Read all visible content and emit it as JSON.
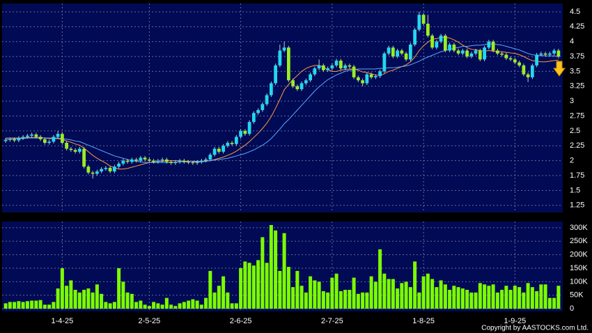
{
  "chart_data": {
    "type": "candlestick",
    "categories": [
      null,
      null,
      null,
      null,
      null,
      null,
      null,
      null,
      null,
      null,
      null,
      null,
      null,
      "1-4-25",
      null,
      null,
      null,
      null,
      null,
      null,
      null,
      null,
      null,
      null,
      null,
      null,
      null,
      null,
      null,
      null,
      null,
      null,
      null,
      "2-5-25",
      null,
      null,
      null,
      null,
      null,
      null,
      null,
      null,
      null,
      null,
      null,
      null,
      null,
      null,
      null,
      null,
      null,
      null,
      null,
      null,
      "2-6-25",
      null,
      null,
      null,
      null,
      null,
      null,
      null,
      null,
      null,
      null,
      null,
      null,
      null,
      null,
      null,
      null,
      null,
      null,
      null,
      null,
      "2-7-25",
      null,
      null,
      null,
      null,
      null,
      null,
      null,
      null,
      null,
      null,
      null,
      null,
      null,
      null,
      null,
      null,
      null,
      null,
      null,
      null,
      "1-8-25",
      null,
      null,
      null,
      null,
      null,
      null,
      null,
      null,
      null,
      null,
      null,
      null,
      null,
      null,
      null,
      null,
      null,
      null,
      null,
      null,
      "1-9-25",
      null,
      null,
      null,
      null,
      null,
      null,
      null,
      null,
      null,
      null
    ],
    "open": [
      2.33,
      2.35,
      2.36,
      2.34,
      2.38,
      2.4,
      2.42,
      2.44,
      2.4,
      2.36,
      2.3,
      2.32,
      2.4,
      2.45,
      2.3,
      2.2,
      2.18,
      2.15,
      2.2,
      1.9,
      1.8,
      1.78,
      1.82,
      1.86,
      1.88,
      1.82,
      1.9,
      1.95,
      2.0,
      1.98,
      2.02,
      2.0,
      2.05,
      2.02,
      2.0,
      1.98,
      2.0,
      2.02,
      1.98,
      1.96,
      1.98,
      2.0,
      1.98,
      1.97,
      1.96,
      1.98,
      2.0,
      2.02,
      2.1,
      2.2,
      2.15,
      2.25,
      2.3,
      2.28,
      2.4,
      2.5,
      2.45,
      2.65,
      2.8,
      2.85,
      2.95,
      3.1,
      3.3,
      3.6,
      3.85,
      3.9,
      3.35,
      3.25,
      3.2,
      3.3,
      3.35,
      3.45,
      3.55,
      3.6,
      3.52,
      3.55,
      3.6,
      3.68,
      3.55,
      3.6,
      3.58,
      3.4,
      3.35,
      3.3,
      3.45,
      3.4,
      3.42,
      3.5,
      3.8,
      3.9,
      3.75,
      3.85,
      3.8,
      3.7,
      3.95,
      4.2,
      4.45,
      4.3,
      4.1,
      3.9,
      4.0,
      4.1,
      3.85,
      3.95,
      3.85,
      3.8,
      3.85,
      3.75,
      3.8,
      3.85,
      3.7,
      3.9,
      4.0,
      3.85,
      3.8,
      3.78,
      3.72,
      3.7,
      3.65,
      3.6,
      3.45,
      3.4,
      3.6,
      3.78,
      3.8,
      3.78,
      3.8,
      3.85
    ],
    "high": [
      2.38,
      2.39,
      2.39,
      2.41,
      2.43,
      2.45,
      2.47,
      2.47,
      2.43,
      2.39,
      2.35,
      2.43,
      2.5,
      2.48,
      2.33,
      2.23,
      2.21,
      2.23,
      2.23,
      1.93,
      1.83,
      1.85,
      1.89,
      1.91,
      1.91,
      1.93,
      1.98,
      2.03,
      2.03,
      2.05,
      2.05,
      2.08,
      2.08,
      2.05,
      2.03,
      2.03,
      2.05,
      2.05,
      2.01,
      2.01,
      2.03,
      2.03,
      2.01,
      2.0,
      2.01,
      2.03,
      2.05,
      2.13,
      2.23,
      2.23,
      2.28,
      2.33,
      2.33,
      2.43,
      2.53,
      2.53,
      2.68,
      2.83,
      2.88,
      2.98,
      3.13,
      3.33,
      3.63,
      3.95,
      4.0,
      3.93,
      3.38,
      3.28,
      3.33,
      3.38,
      3.48,
      3.58,
      3.7,
      3.63,
      3.58,
      3.63,
      3.71,
      3.71,
      3.63,
      3.63,
      3.61,
      3.43,
      3.38,
      3.48,
      3.48,
      3.45,
      3.53,
      3.83,
      3.93,
      3.93,
      3.88,
      3.88,
      3.83,
      3.98,
      4.23,
      4.5,
      4.48,
      4.45,
      4.13,
      4.03,
      4.13,
      4.13,
      3.98,
      3.98,
      3.88,
      3.88,
      3.88,
      3.83,
      3.88,
      3.88,
      3.93,
      4.03,
      4.03,
      3.88,
      3.83,
      3.81,
      3.75,
      3.73,
      3.68,
      3.63,
      3.48,
      3.63,
      3.81,
      3.83,
      3.83,
      3.83,
      3.88,
      3.88
    ],
    "low": [
      2.3,
      2.32,
      2.31,
      2.31,
      2.35,
      2.37,
      2.39,
      2.37,
      2.33,
      2.27,
      2.27,
      2.29,
      2.37,
      2.27,
      2.17,
      2.15,
      2.12,
      2.12,
      1.87,
      1.77,
      1.7,
      1.75,
      1.79,
      1.83,
      1.79,
      1.79,
      1.87,
      1.92,
      1.95,
      1.95,
      1.97,
      1.97,
      1.99,
      1.97,
      1.95,
      1.95,
      1.97,
      1.95,
      1.93,
      1.93,
      1.95,
      1.95,
      1.94,
      1.93,
      1.93,
      1.95,
      1.97,
      1.99,
      2.07,
      2.12,
      2.12,
      2.22,
      2.25,
      2.25,
      2.37,
      2.42,
      2.42,
      2.62,
      2.77,
      2.82,
      2.92,
      3.07,
      3.27,
      3.57,
      3.82,
      3.32,
      3.22,
      3.17,
      3.17,
      3.27,
      3.32,
      3.42,
      3.52,
      3.49,
      3.49,
      3.52,
      3.57,
      3.52,
      3.52,
      3.55,
      3.37,
      3.32,
      3.25,
      3.27,
      3.37,
      3.37,
      3.39,
      3.47,
      3.77,
      3.72,
      3.72,
      3.77,
      3.67,
      3.67,
      3.92,
      4.17,
      4.27,
      4.07,
      3.87,
      3.87,
      3.97,
      3.82,
      3.82,
      3.82,
      3.77,
      3.77,
      3.72,
      3.72,
      3.77,
      3.67,
      3.67,
      3.87,
      3.82,
      3.77,
      3.75,
      3.69,
      3.67,
      3.62,
      3.57,
      3.42,
      3.32,
      3.37,
      3.57,
      3.75,
      3.75,
      3.75,
      3.77,
      3.72
    ],
    "close": [
      2.35,
      2.36,
      2.34,
      2.38,
      2.4,
      2.42,
      2.44,
      2.4,
      2.36,
      2.3,
      2.32,
      2.4,
      2.45,
      2.3,
      2.2,
      2.18,
      2.15,
      2.2,
      1.9,
      1.8,
      1.78,
      1.82,
      1.86,
      1.88,
      1.82,
      1.9,
      1.95,
      2.0,
      1.98,
      2.02,
      2.0,
      2.05,
      2.02,
      2.0,
      1.98,
      2.0,
      2.02,
      1.98,
      1.96,
      1.98,
      2.0,
      1.98,
      1.97,
      1.96,
      1.98,
      2.0,
      2.02,
      2.1,
      2.2,
      2.15,
      2.25,
      2.3,
      2.28,
      2.4,
      2.5,
      2.45,
      2.65,
      2.8,
      2.85,
      2.95,
      3.1,
      3.3,
      3.6,
      3.85,
      3.9,
      3.35,
      3.25,
      3.2,
      3.3,
      3.35,
      3.45,
      3.55,
      3.6,
      3.52,
      3.55,
      3.6,
      3.68,
      3.55,
      3.6,
      3.58,
      3.4,
      3.35,
      3.3,
      3.45,
      3.4,
      3.42,
      3.5,
      3.8,
      3.9,
      3.75,
      3.85,
      3.8,
      3.7,
      3.95,
      4.2,
      4.45,
      4.3,
      4.1,
      3.9,
      4.0,
      4.1,
      3.85,
      3.95,
      3.85,
      3.8,
      3.85,
      3.75,
      3.8,
      3.85,
      3.7,
      3.9,
      4.0,
      3.85,
      3.8,
      3.78,
      3.72,
      3.7,
      3.65,
      3.6,
      3.45,
      3.4,
      3.6,
      3.78,
      3.8,
      3.78,
      3.8,
      3.85,
      3.75
    ],
    "up_color": "#22d8f0",
    "down_color": "#99ee22",
    "ma": [
      {
        "color": "#ff9a3c",
        "values": [
          2.38,
          2.38,
          2.38,
          2.38,
          2.38,
          2.39,
          2.39,
          2.39,
          2.39,
          2.38,
          2.37,
          2.37,
          2.37,
          2.36,
          2.33,
          2.31,
          2.28,
          2.26,
          2.21,
          2.15,
          2.09,
          2.04,
          2.0,
          1.96,
          1.91,
          1.88,
          1.86,
          1.86,
          1.87,
          1.89,
          1.91,
          1.93,
          1.95,
          1.97,
          1.98,
          1.99,
          1.99,
          2.0,
          2.0,
          2.0,
          2.0,
          1.99,
          1.99,
          1.98,
          1.98,
          1.98,
          1.99,
          2.0,
          2.02,
          2.04,
          2.06,
          2.09,
          2.12,
          2.16,
          2.21,
          2.26,
          2.32,
          2.39,
          2.46,
          2.54,
          2.63,
          2.74,
          2.88,
          3.03,
          3.19,
          3.28,
          3.36,
          3.43,
          3.5,
          3.55,
          3.58,
          3.6,
          3.6,
          3.57,
          3.53,
          3.5,
          3.5,
          3.52,
          3.53,
          3.54,
          3.54,
          3.52,
          3.49,
          3.48,
          3.46,
          3.44,
          3.43,
          3.46,
          3.5,
          3.52,
          3.55,
          3.58,
          3.61,
          3.66,
          3.74,
          3.85,
          3.93,
          3.99,
          4.04,
          4.05,
          4.07,
          4.07,
          4.06,
          4.03,
          3.99,
          3.94,
          3.9,
          3.87,
          3.86,
          3.85,
          3.84,
          3.85,
          3.84,
          3.83,
          3.83,
          3.82,
          3.81,
          3.8,
          3.78,
          3.75,
          3.71,
          3.68,
          3.67,
          3.66,
          3.66,
          3.67,
          3.68,
          3.69
        ]
      },
      {
        "color": "#5fa8ff",
        "values": [
          2.36,
          2.36,
          2.37,
          2.37,
          2.37,
          2.38,
          2.38,
          2.38,
          2.38,
          2.38,
          2.38,
          2.38,
          2.38,
          2.37,
          2.36,
          2.35,
          2.33,
          2.32,
          2.29,
          2.26,
          2.23,
          2.2,
          2.17,
          2.14,
          2.11,
          2.08,
          2.06,
          2.04,
          2.02,
          2.0,
          1.99,
          1.98,
          1.97,
          1.97,
          1.97,
          1.97,
          1.97,
          1.97,
          1.97,
          1.97,
          1.98,
          1.98,
          1.98,
          1.99,
          1.99,
          1.99,
          2.0,
          2.0,
          2.01,
          2.02,
          2.03,
          2.04,
          2.06,
          2.08,
          2.1,
          2.12,
          2.15,
          2.18,
          2.22,
          2.26,
          2.31,
          2.37,
          2.45,
          2.53,
          2.62,
          2.69,
          2.77,
          2.85,
          2.93,
          3.01,
          3.09,
          3.17,
          3.24,
          3.3,
          3.36,
          3.4,
          3.44,
          3.47,
          3.5,
          3.52,
          3.53,
          3.54,
          3.54,
          3.54,
          3.54,
          3.54,
          3.55,
          3.55,
          3.56,
          3.56,
          3.57,
          3.58,
          3.59,
          3.61,
          3.64,
          3.67,
          3.71,
          3.74,
          3.77,
          3.8,
          3.83,
          3.85,
          3.87,
          3.89,
          3.9,
          3.92,
          3.92,
          3.93,
          3.94,
          3.94,
          3.95,
          3.96,
          3.96,
          3.95,
          3.94,
          3.92,
          3.9,
          3.88,
          3.86,
          3.83,
          3.8,
          3.78,
          3.77,
          3.77,
          3.76,
          3.76,
          3.76,
          3.75
        ]
      }
    ],
    "ylim": [
      1.13,
      4.64
    ],
    "yticks": [
      1.25,
      1.5,
      1.75,
      2,
      2.25,
      2.5,
      2.75,
      3,
      3.25,
      3.5,
      3.75,
      4,
      4.25,
      4.5
    ],
    "grid": true,
    "volume": {
      "color": "#7cfc00",
      "values": [
        20000,
        25000,
        25000,
        28000,
        25000,
        28000,
        30000,
        30000,
        32000,
        15000,
        15000,
        25000,
        75000,
        150000,
        85000,
        105000,
        70000,
        60000,
        70000,
        75000,
        60000,
        90000,
        55000,
        25000,
        20000,
        25000,
        150000,
        100000,
        60000,
        55000,
        25000,
        30000,
        15000,
        10000,
        25000,
        20000,
        15000,
        40000,
        15000,
        10000,
        20000,
        25000,
        30000,
        35000,
        30000,
        15000,
        40000,
        140000,
        60000,
        85000,
        120000,
        60000,
        20000,
        20000,
        150000,
        175000,
        170000,
        160000,
        180000,
        265000,
        170000,
        310000,
        290000,
        140000,
        280000,
        155000,
        80000,
        140000,
        85000,
        60000,
        120000,
        105000,
        100000,
        65000,
        60000,
        115000,
        130000,
        65000,
        70000,
        70000,
        115000,
        55000,
        60000,
        60000,
        120000,
        100000,
        220000,
        130000,
        110000,
        110000,
        75000,
        95000,
        100000,
        80000,
        175000,
        60000,
        120000,
        130000,
        110000,
        80000,
        105000,
        90000,
        70000,
        85000,
        80000,
        75000,
        70000,
        60000,
        60000,
        95000,
        90000,
        85000,
        90000,
        60000,
        70000,
        85000,
        70000,
        85000,
        80000,
        60000,
        95000,
        80000,
        65000,
        90000,
        90000,
        40000,
        40000,
        85000
      ],
      "ylim": [
        -10000,
        323000
      ],
      "yticks": [
        0,
        {
          "value": 50000,
          "label": "50K"
        },
        {
          "value": 100000,
          "label": "100K"
        },
        {
          "value": 150000,
          "label": "150K"
        },
        {
          "value": 200000,
          "label": "200K"
        },
        {
          "value": 250000,
          "label": "250K"
        },
        {
          "value": 300000,
          "label": "300K"
        }
      ]
    },
    "copyright": "Copyright by AASTOCKS.com Ltd."
  }
}
